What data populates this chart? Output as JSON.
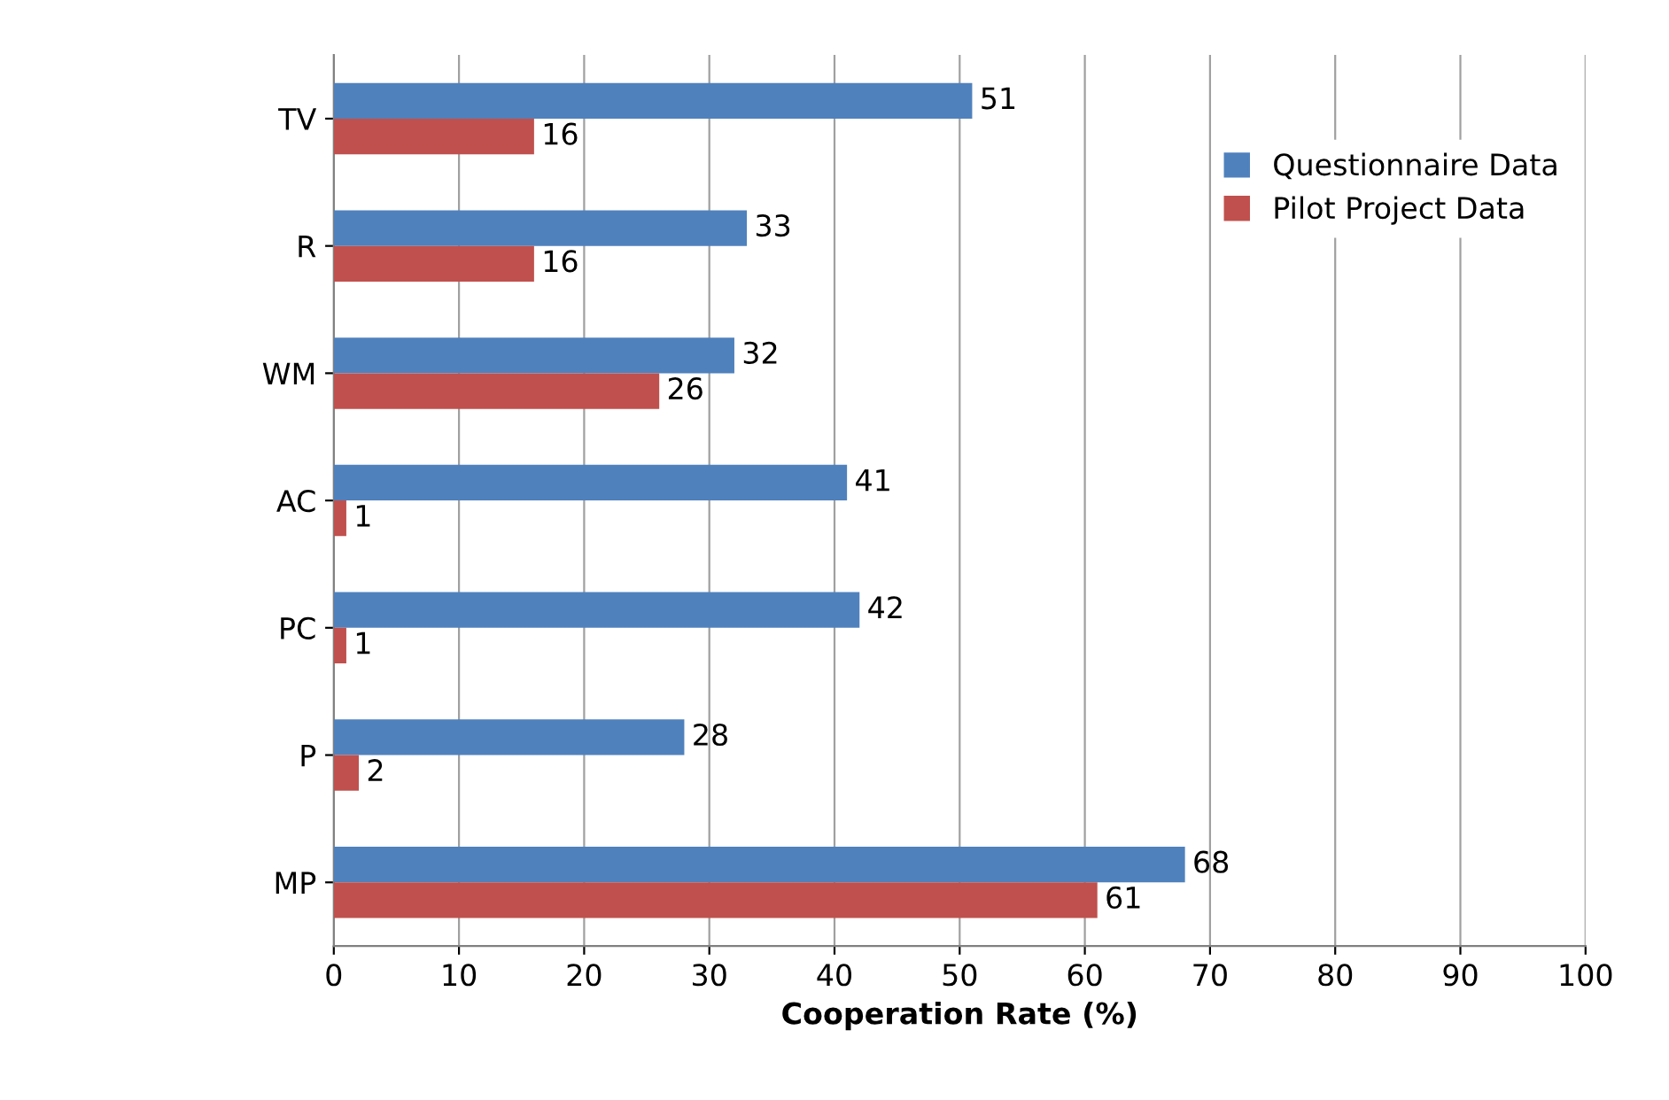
{
  "chart_data": {
    "type": "bar",
    "orientation": "horizontal",
    "xlabel": "Cooperation Rate (%)",
    "categories": [
      "TV",
      "R",
      "WM",
      "AC",
      "PC",
      "P",
      "MP"
    ],
    "series": [
      {
        "name": "Questionnaire Data",
        "color": "#4f81bd",
        "values": [
          51,
          33,
          32,
          41,
          42,
          28,
          68
        ]
      },
      {
        "name": "Pilot Project Data",
        "color": "#c0504d",
        "values": [
          16,
          16,
          26,
          1,
          1,
          2,
          61
        ]
      }
    ],
    "xlim": [
      0,
      100
    ],
    "xticks": [
      0,
      10,
      20,
      30,
      40,
      50,
      60,
      70,
      80,
      90,
      100
    ],
    "grid": "x",
    "legend": "top right",
    "data_labels": true
  }
}
